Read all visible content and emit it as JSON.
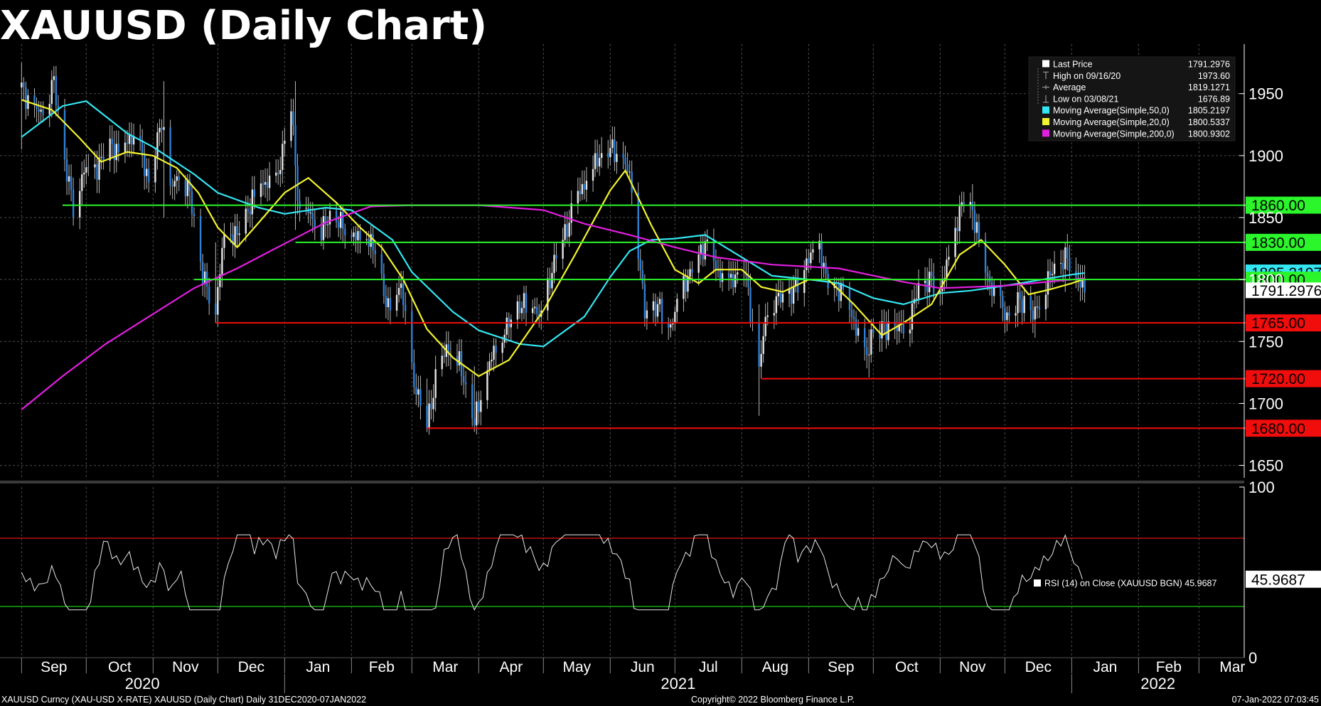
{
  "title": "XAUUSD (Daily Chart)",
  "chart_data": {
    "type": "candlestick",
    "price_axis": {
      "ticks": [
        1650,
        1700,
        1750,
        1800,
        1850,
        1900,
        1950
      ],
      "ylim": [
        1640,
        1990
      ]
    },
    "x_axis": {
      "months": [
        "Sep",
        "Oct",
        "Nov",
        "Dec",
        "Jan",
        "Feb",
        "Mar",
        "Apr",
        "May",
        "Jun",
        "Jul",
        "Aug",
        "Sep",
        "Oct",
        "Nov",
        "Dec",
        "Jan",
        "Feb",
        "Mar"
      ],
      "years": [
        "2020",
        "2021",
        "2022"
      ]
    },
    "close_path": [
      [
        "2020-09-01",
        1955
      ],
      [
        "2020-09-05",
        1940
      ],
      [
        "2020-09-10",
        1935
      ],
      [
        "2020-09-16",
        1960
      ],
      [
        "2020-09-21",
        1895
      ],
      [
        "2020-09-25",
        1860
      ],
      [
        "2020-09-30",
        1888
      ],
      [
        "2020-10-06",
        1890
      ],
      [
        "2020-10-12",
        1910
      ],
      [
        "2020-10-16",
        1900
      ],
      [
        "2020-10-21",
        1915
      ],
      [
        "2020-10-26",
        1905
      ],
      [
        "2020-10-30",
        1878
      ],
      [
        "2020-11-05",
        1930
      ],
      [
        "2020-11-09",
        1872
      ],
      [
        "2020-11-13",
        1886
      ],
      [
        "2020-11-18",
        1870
      ],
      [
        "2020-11-24",
        1803
      ],
      [
        "2020-11-30",
        1776
      ],
      [
        "2020-12-04",
        1837
      ],
      [
        "2020-12-10",
        1836
      ],
      [
        "2020-12-16",
        1860
      ],
      [
        "2020-12-21",
        1878
      ],
      [
        "2020-12-28",
        1877
      ],
      [
        "2021-01-04",
        1940
      ],
      [
        "2021-01-08",
        1848
      ],
      [
        "2021-01-12",
        1855
      ],
      [
        "2021-01-18",
        1839
      ],
      [
        "2021-01-22",
        1852
      ],
      [
        "2021-01-28",
        1844
      ],
      [
        "2021-02-03",
        1834
      ],
      [
        "2021-02-08",
        1836
      ],
      [
        "2021-02-12",
        1822
      ],
      [
        "2021-02-18",
        1775
      ],
      [
        "2021-02-24",
        1797
      ],
      [
        "2021-03-01",
        1723
      ],
      [
        "2021-03-08",
        1683
      ],
      [
        "2021-03-12",
        1718
      ],
      [
        "2021-03-17",
        1745
      ],
      [
        "2021-03-23",
        1733
      ],
      [
        "2021-03-30",
        1685
      ],
      [
        "2021-04-05",
        1728
      ],
      [
        "2021-04-09",
        1746
      ],
      [
        "2021-04-15",
        1765
      ],
      [
        "2021-04-20",
        1779
      ],
      [
        "2021-04-26",
        1780
      ],
      [
        "2021-04-30",
        1768
      ],
      [
        "2021-05-06",
        1815
      ],
      [
        "2021-05-11",
        1837
      ],
      [
        "2021-05-17",
        1868
      ],
      [
        "2021-05-21",
        1880
      ],
      [
        "2021-05-26",
        1897
      ],
      [
        "2021-06-01",
        1906
      ],
      [
        "2021-06-07",
        1898
      ],
      [
        "2021-06-11",
        1877
      ],
      [
        "2021-06-17",
        1773
      ],
      [
        "2021-06-23",
        1779
      ],
      [
        "2021-06-29",
        1762
      ],
      [
        "2021-07-05",
        1795
      ],
      [
        "2021-07-09",
        1808
      ],
      [
        "2021-07-15",
        1829
      ],
      [
        "2021-07-21",
        1805
      ],
      [
        "2021-07-27",
        1798
      ],
      [
        "2021-08-02",
        1812
      ],
      [
        "2021-08-06",
        1763
      ],
      [
        "2021-08-09",
        1728
      ],
      [
        "2021-08-13",
        1779
      ],
      [
        "2021-08-19",
        1786
      ],
      [
        "2021-08-25",
        1790
      ],
      [
        "2021-08-31",
        1815
      ],
      [
        "2021-09-06",
        1826
      ],
      [
        "2021-09-10",
        1795
      ],
      [
        "2021-09-16",
        1792
      ],
      [
        "2021-09-22",
        1766
      ],
      [
        "2021-09-28",
        1735
      ],
      [
        "2021-09-30",
        1757
      ],
      [
        "2021-10-06",
        1761
      ],
      [
        "2021-10-12",
        1760
      ],
      [
        "2021-10-18",
        1769
      ],
      [
        "2021-10-22",
        1795
      ],
      [
        "2021-10-28",
        1800
      ],
      [
        "2021-11-01",
        1793
      ],
      [
        "2021-11-05",
        1817
      ],
      [
        "2021-11-11",
        1862
      ],
      [
        "2021-11-16",
        1855
      ],
      [
        "2021-11-22",
        1806
      ],
      [
        "2021-11-26",
        1788
      ],
      [
        "2021-12-02",
        1770
      ],
      [
        "2021-12-08",
        1784
      ],
      [
        "2021-12-14",
        1770
      ],
      [
        "2021-12-20",
        1796
      ],
      [
        "2021-12-24",
        1811
      ],
      [
        "2021-12-30",
        1818
      ],
      [
        "2022-01-03",
        1803
      ],
      [
        "2022-01-07",
        1791.3
      ]
    ],
    "ranges": [
      [
        "2020-09-01",
        1905,
        1975
      ],
      [
        "2020-09-19",
        1850,
        1920
      ],
      [
        "2020-11-06",
        1850,
        1960
      ],
      [
        "2020-11-30",
        1765,
        1830
      ],
      [
        "2021-01-06",
        1840,
        1960
      ],
      [
        "2021-03-08",
        1676.89,
        1720
      ],
      [
        "2021-03-30",
        1677,
        1730
      ],
      [
        "2021-05-28",
        1890,
        1915
      ],
      [
        "2021-08-09",
        1690,
        1780
      ],
      [
        "2021-09-29",
        1721,
        1760
      ],
      [
        "2021-11-16",
        1840,
        1877
      ],
      [
        "2021-12-15",
        1753,
        1790
      ],
      [
        "2021-12-29",
        1790,
        1830
      ]
    ],
    "moving_averages": [
      {
        "name": "Moving Average(Simple,50,0)",
        "color": "#33e6f2",
        "points": [
          [
            "2020-09-01",
            1915
          ],
          [
            "2020-09-20",
            1940
          ],
          [
            "2020-10-01",
            1944
          ],
          [
            "2020-10-20",
            1918
          ],
          [
            "2020-11-01",
            1907
          ],
          [
            "2020-11-20",
            1885
          ],
          [
            "2020-12-01",
            1870
          ],
          [
            "2020-12-20",
            1858
          ],
          [
            "2021-01-01",
            1853
          ],
          [
            "2021-01-20",
            1858
          ],
          [
            "2021-02-01",
            1856
          ],
          [
            "2021-02-20",
            1832
          ],
          [
            "2021-03-01",
            1806
          ],
          [
            "2021-03-20",
            1774
          ],
          [
            "2021-04-01",
            1759
          ],
          [
            "2021-04-20",
            1748
          ],
          [
            "2021-05-01",
            1746
          ],
          [
            "2021-05-20",
            1770
          ],
          [
            "2021-06-01",
            1802
          ],
          [
            "2021-06-10",
            1823
          ],
          [
            "2021-06-20",
            1832
          ],
          [
            "2021-07-01",
            1833
          ],
          [
            "2021-07-15",
            1836
          ],
          [
            "2021-08-01",
            1818
          ],
          [
            "2021-08-15",
            1803
          ],
          [
            "2021-09-01",
            1800
          ],
          [
            "2021-09-15",
            1797
          ],
          [
            "2021-10-01",
            1785
          ],
          [
            "2021-10-15",
            1780
          ],
          [
            "2021-11-01",
            1789
          ],
          [
            "2021-11-15",
            1791
          ],
          [
            "2021-12-01",
            1795
          ],
          [
            "2021-12-15",
            1799
          ],
          [
            "2022-01-01",
            1804
          ],
          [
            "2022-01-07",
            1805.2197
          ]
        ]
      },
      {
        "name": "Moving Average(Simple,20,0)",
        "color": "#f2f22e",
        "points": [
          [
            "2020-09-01",
            1945
          ],
          [
            "2020-09-15",
            1937
          ],
          [
            "2020-09-28",
            1914
          ],
          [
            "2020-10-08",
            1895
          ],
          [
            "2020-10-20",
            1903
          ],
          [
            "2020-11-01",
            1900
          ],
          [
            "2020-11-12",
            1890
          ],
          [
            "2020-11-22",
            1870
          ],
          [
            "2020-12-01",
            1842
          ],
          [
            "2020-12-10",
            1826
          ],
          [
            "2020-12-20",
            1846
          ],
          [
            "2021-01-01",
            1870
          ],
          [
            "2021-01-12",
            1882
          ],
          [
            "2021-01-25",
            1862
          ],
          [
            "2021-02-05",
            1842
          ],
          [
            "2021-02-15",
            1826
          ],
          [
            "2021-02-25",
            1800
          ],
          [
            "2021-03-08",
            1760
          ],
          [
            "2021-03-20",
            1737
          ],
          [
            "2021-04-01",
            1722
          ],
          [
            "2021-04-15",
            1735
          ],
          [
            "2021-05-01",
            1775
          ],
          [
            "2021-05-15",
            1818
          ],
          [
            "2021-06-01",
            1872
          ],
          [
            "2021-06-08",
            1888
          ],
          [
            "2021-06-20",
            1844
          ],
          [
            "2021-07-01",
            1808
          ],
          [
            "2021-07-12",
            1797
          ],
          [
            "2021-07-20",
            1808
          ],
          [
            "2021-08-01",
            1808
          ],
          [
            "2021-08-10",
            1794
          ],
          [
            "2021-08-20",
            1790
          ],
          [
            "2021-09-01",
            1800
          ],
          [
            "2021-09-10",
            1800
          ],
          [
            "2021-09-22",
            1780
          ],
          [
            "2021-10-05",
            1755
          ],
          [
            "2021-10-15",
            1765
          ],
          [
            "2021-10-28",
            1780
          ],
          [
            "2021-11-10",
            1820
          ],
          [
            "2021-11-20",
            1832
          ],
          [
            "2021-12-01",
            1812
          ],
          [
            "2021-12-12",
            1788
          ],
          [
            "2021-12-22",
            1792
          ],
          [
            "2022-01-01",
            1797
          ],
          [
            "2022-01-07",
            1800.5337
          ]
        ]
      },
      {
        "name": "Moving Average(Simple,200,0)",
        "color": "#e21fe0",
        "points": [
          [
            "2020-09-01",
            1695
          ],
          [
            "2020-09-20",
            1722
          ],
          [
            "2020-10-10",
            1748
          ],
          [
            "2020-10-30",
            1770
          ],
          [
            "2020-11-20",
            1793
          ],
          [
            "2020-12-10",
            1809
          ],
          [
            "2020-12-31",
            1828
          ],
          [
            "2021-01-20",
            1846
          ],
          [
            "2021-02-10",
            1859
          ],
          [
            "2021-03-01",
            1860
          ],
          [
            "2021-04-01",
            1860
          ],
          [
            "2021-05-01",
            1856
          ],
          [
            "2021-05-20",
            1845
          ],
          [
            "2021-06-10",
            1836
          ],
          [
            "2021-07-01",
            1826
          ],
          [
            "2021-07-20",
            1818
          ],
          [
            "2021-08-15",
            1812
          ],
          [
            "2021-09-15",
            1809
          ],
          [
            "2021-10-15",
            1798
          ],
          [
            "2021-11-01",
            1793
          ],
          [
            "2021-12-01",
            1795
          ],
          [
            "2021-12-20",
            1798
          ],
          [
            "2022-01-07",
            1800.9302
          ]
        ]
      }
    ],
    "levels": [
      {
        "value": 1860,
        "label": "1860.00",
        "color": "#2bf52b",
        "from": "2020-09-20"
      },
      {
        "value": 1830,
        "label": "1830.00",
        "color": "#2bf52b",
        "from": "2021-01-06"
      },
      {
        "value": 1800,
        "label": "1800.00",
        "color": "#2bf52b",
        "from": "2020-11-20"
      },
      {
        "value": 1765,
        "label": "1765.00",
        "color": "#f20d0d",
        "from": "2020-11-30"
      },
      {
        "value": 1720,
        "label": "1720.00",
        "color": "#f20d0d",
        "from": "2021-08-10"
      },
      {
        "value": 1680,
        "label": "1680.00",
        "color": "#f20d0d",
        "from": "2021-03-08"
      }
    ],
    "last_price": {
      "value": 1791.2976,
      "label": "1791.2976"
    },
    "hidden_tag": {
      "value": 1805.2197,
      "label": "1805.2197",
      "color": "#33e6f2"
    },
    "legend": [
      {
        "marker": "square",
        "color": "#ffffff",
        "name": "Last Price",
        "value": "1791.2976"
      },
      {
        "marker": "high",
        "color": "#aaaaaa",
        "name": "High on 09/16/20",
        "value": "1973.60"
      },
      {
        "marker": "avg",
        "color": "#aaaaaa",
        "name": "Average",
        "value": "1819.1271"
      },
      {
        "marker": "low",
        "color": "#aaaaaa",
        "name": "Low on 03/08/21",
        "value": "1676.89"
      },
      {
        "marker": "square",
        "color": "#33e6f2",
        "name": "Moving Average(Simple,50,0)",
        "value": "1805.2197"
      },
      {
        "marker": "square",
        "color": "#f2f22e",
        "name": "Moving Average(Simple,20,0)",
        "value": "1800.5337"
      },
      {
        "marker": "square",
        "color": "#e21fe0",
        "name": "Moving Average(Simple,200,0)",
        "value": "1800.9302"
      }
    ],
    "rsi": {
      "legend": "RSI (14)  on Close (XAUUSD BGN) 45.9687",
      "value": 45.9687,
      "label": "45.9687",
      "ticks": [
        0,
        100
      ],
      "overbought": 70,
      "oversold": 30
    }
  },
  "footer": {
    "left": "XAUUSD Curncy (XAU-USD X-RATE) XAUUSD (Daily Chart)  Daily 31DEC2020-07JAN2022",
    "center": "Copyright© 2022 Bloomberg Finance L.P.",
    "right": "07-Jan-2022 07:03:45"
  }
}
